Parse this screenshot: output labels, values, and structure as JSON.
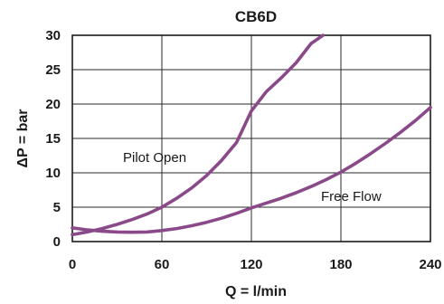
{
  "chart_data": {
    "type": "line",
    "title": "CB6D",
    "xlabel": "Q = l/min",
    "ylabel": "ΔP = bar",
    "xlim": [
      0,
      240
    ],
    "ylim": [
      0,
      30
    ],
    "x_ticks": [
      0,
      60,
      120,
      180,
      240
    ],
    "y_ticks": [
      0,
      5,
      10,
      15,
      20,
      25,
      30
    ],
    "grid": true,
    "line_color": "#8a4a8a",
    "series": [
      {
        "name": "Pilot Open",
        "x": [
          0,
          10,
          20,
          30,
          40,
          50,
          60,
          70,
          80,
          90,
          100,
          110,
          120,
          130,
          140,
          150,
          160,
          168
        ],
        "y": [
          1.0,
          1.4,
          1.9,
          2.5,
          3.2,
          4.0,
          5.0,
          6.3,
          7.8,
          9.6,
          11.8,
          14.4,
          19.0,
          21.8,
          23.8,
          26.0,
          28.8,
          30.0
        ]
      },
      {
        "name": "Free Flow",
        "x": [
          0,
          10,
          20,
          30,
          40,
          50,
          60,
          70,
          80,
          90,
          100,
          110,
          120,
          130,
          140,
          150,
          160,
          170,
          180,
          190,
          200,
          210,
          220,
          230,
          240
        ],
        "y": [
          2.0,
          1.7,
          1.5,
          1.4,
          1.35,
          1.4,
          1.6,
          1.9,
          2.3,
          2.8,
          3.4,
          4.1,
          4.9,
          5.6,
          6.3,
          7.1,
          8.0,
          9.0,
          10.1,
          11.4,
          12.8,
          14.3,
          15.9,
          17.6,
          19.5
        ]
      }
    ],
    "annotations": [
      "Pilot Open",
      "Free Flow"
    ]
  }
}
